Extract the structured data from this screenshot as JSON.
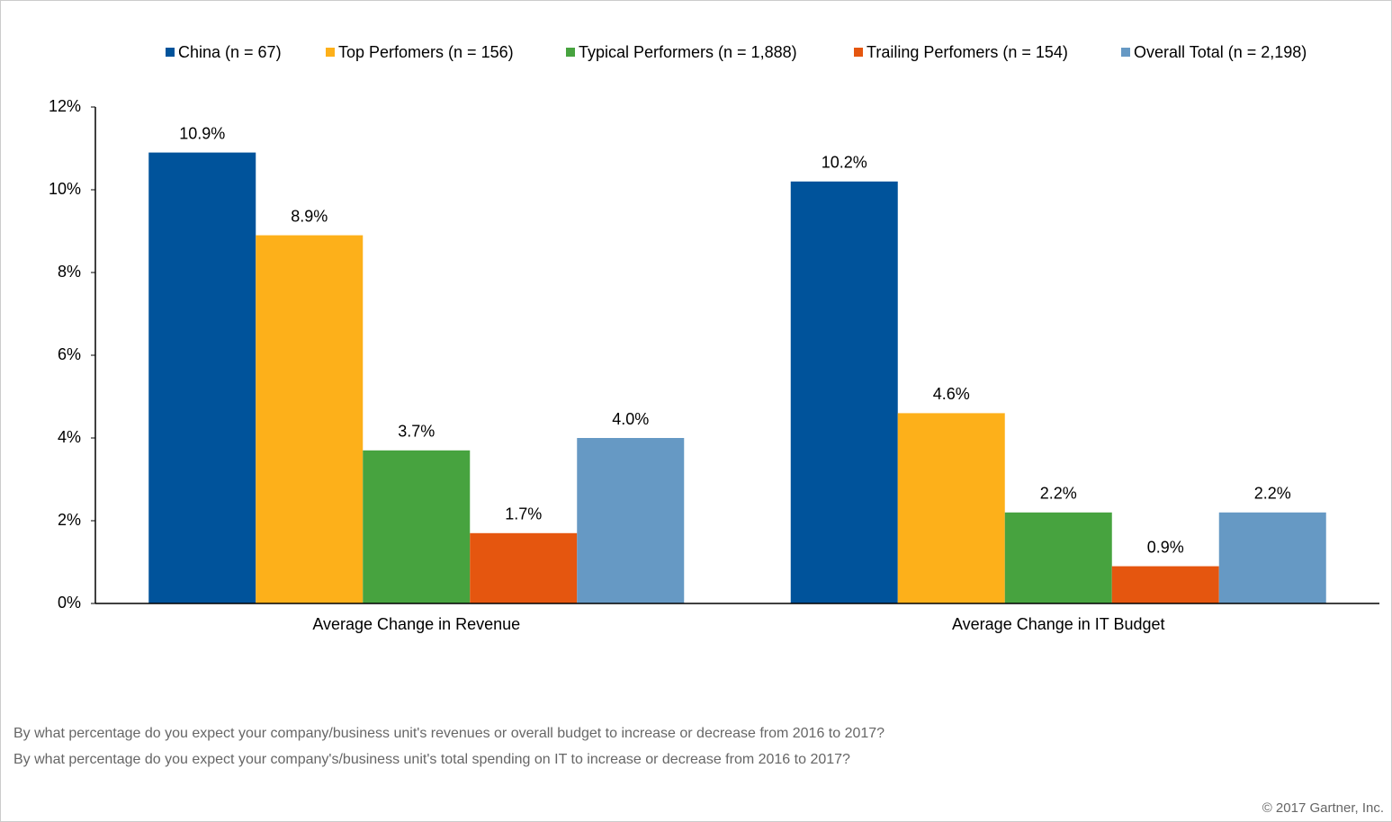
{
  "chart_data": {
    "type": "bar",
    "categories": [
      "Average Change in Revenue",
      "Average Change in IT Budget"
    ],
    "series": [
      {
        "name": "China (n = 67)",
        "color": "#00539b",
        "values": [
          10.9,
          10.2
        ],
        "value_labels": [
          "10.9%",
          "10.2%"
        ]
      },
      {
        "name": "Top Perfomers (n = 156)",
        "color": "#fdb01a",
        "values": [
          8.9,
          4.6
        ],
        "value_labels": [
          "8.9%",
          "4.6%"
        ]
      },
      {
        "name": "Typical Performers (n = 1,888)",
        "color": "#47a33f",
        "values": [
          3.7,
          2.2
        ],
        "value_labels": [
          "3.7%",
          "2.2%"
        ]
      },
      {
        "name": "Trailing Perfomers (n = 154)",
        "color": "#e5560f",
        "values": [
          1.7,
          0.9
        ],
        "value_labels": [
          "1.7%",
          "0.9%"
        ]
      },
      {
        "name": "Overall Total (n = 2,198)",
        "color": "#6699c4",
        "values": [
          4.0,
          2.2
        ],
        "value_labels": [
          "4.0%",
          "2.2%"
        ]
      }
    ],
    "ylim": [
      0,
      12
    ],
    "yticks": [
      {
        "value": 0,
        "label": "0%"
      },
      {
        "value": 2,
        "label": "2%"
      },
      {
        "value": 4,
        "label": "4%"
      },
      {
        "value": 6,
        "label": "6%"
      },
      {
        "value": 8,
        "label": "8%"
      },
      {
        "value": 10,
        "label": "10%"
      },
      {
        "value": 12,
        "label": "12%"
      }
    ],
    "legend": "top",
    "footnotes": [
      "By what percentage do you expect your company/business unit's revenues or overall budget to increase or decrease from 2016 to 2017?",
      "By what percentage do you expect your company's/business unit's total spending on IT to increase or decrease from 2016 to 2017?"
    ],
    "copyright": "© 2017 Gartner, Inc."
  }
}
